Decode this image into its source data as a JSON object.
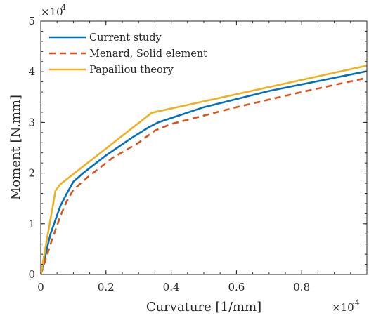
{
  "chart_data": {
    "type": "line",
    "title": "",
    "xlabel": "Curvature [1/mm]",
    "ylabel": "Moment [N.mm]",
    "x_multiplier": "×10",
    "x_exponent": "-4",
    "y_multiplier": "×10",
    "y_exponent": "4",
    "xlim": [
      0,
      1.0
    ],
    "ylim": [
      0,
      5
    ],
    "xticks": [
      0,
      0.2,
      0.4,
      0.6,
      0.8
    ],
    "xtick_labels": [
      "0",
      "0.2",
      "0.4",
      "0.6",
      "0.8"
    ],
    "yticks": [
      0,
      1,
      2,
      3,
      4,
      5
    ],
    "ytick_labels": [
      "0",
      "1",
      "2",
      "3",
      "4",
      "5"
    ],
    "grid": false,
    "legend_position": "top-left",
    "series": [
      {
        "name": "Current study",
        "color": "#0072BD",
        "dash": "solid",
        "points": [
          [
            0,
            0
          ],
          [
            0.03,
            0.8
          ],
          [
            0.06,
            1.35
          ],
          [
            0.08,
            1.6
          ],
          [
            0.1,
            1.83
          ],
          [
            0.13,
            2.0
          ],
          [
            0.2,
            2.35
          ],
          [
            0.28,
            2.7
          ],
          [
            0.33,
            2.9
          ],
          [
            0.36,
            3.0
          ],
          [
            0.5,
            3.3
          ],
          [
            0.7,
            3.62
          ],
          [
            0.9,
            3.88
          ],
          [
            1.0,
            4.01
          ]
        ]
      },
      {
        "name": "Menard, Solid element",
        "color": "#D95319",
        "dash": "dashed",
        "points": [
          [
            0,
            0
          ],
          [
            0.03,
            0.6
          ],
          [
            0.06,
            1.15
          ],
          [
            0.08,
            1.45
          ],
          [
            0.1,
            1.67
          ],
          [
            0.14,
            1.9
          ],
          [
            0.22,
            2.3
          ],
          [
            0.3,
            2.6
          ],
          [
            0.35,
            2.84
          ],
          [
            0.4,
            2.97
          ],
          [
            0.6,
            3.3
          ],
          [
            0.8,
            3.6
          ],
          [
            1.0,
            3.88
          ]
        ]
      },
      {
        "name": "Papailiou theory",
        "color": "#EDB120",
        "dash": "solid",
        "points": [
          [
            0,
            0
          ],
          [
            0.045,
            1.65
          ],
          [
            0.06,
            1.78
          ],
          [
            0.34,
            3.19
          ],
          [
            1.0,
            4.12
          ]
        ]
      }
    ]
  }
}
